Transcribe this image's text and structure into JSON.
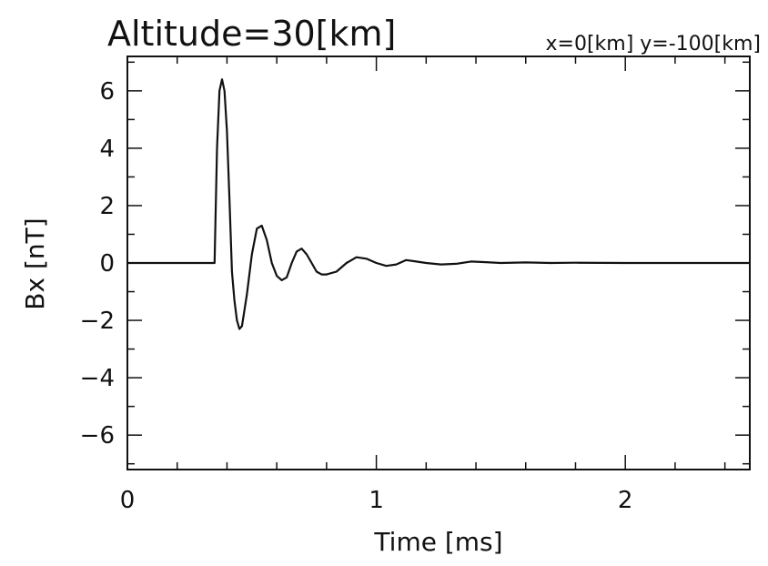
{
  "chart_data": {
    "type": "line",
    "title": "Altitude=30[km]",
    "subtitle": "x=0[km] y=-100[km]",
    "xlabel": "Time [ms]",
    "ylabel": "Bx [nT]",
    "xlim": [
      0,
      2.5
    ],
    "ylim": [
      -7.2,
      7.2
    ],
    "x_ticks": [
      0,
      1,
      2
    ],
    "y_ticks": [
      -6,
      -4,
      -2,
      0,
      2,
      4,
      6
    ],
    "x_tick_labels": [
      "0",
      "1",
      "2"
    ],
    "y_tick_labels": [
      "−6",
      "−4",
      "−2",
      "0",
      "2",
      "4",
      "6"
    ],
    "grid": false,
    "series": [
      {
        "x": [
          0.0,
          0.2,
          0.35,
          0.353,
          0.36,
          0.37,
          0.38,
          0.39,
          0.4,
          0.41,
          0.42,
          0.43,
          0.44,
          0.45,
          0.46,
          0.48,
          0.5,
          0.52,
          0.54,
          0.56,
          0.58,
          0.6,
          0.62,
          0.64,
          0.66,
          0.68,
          0.7,
          0.72,
          0.74,
          0.76,
          0.78,
          0.8,
          0.84,
          0.88,
          0.92,
          0.96,
          1.0,
          1.04,
          1.08,
          1.12,
          1.16,
          1.2,
          1.26,
          1.32,
          1.38,
          1.44,
          1.5,
          1.6,
          1.7,
          1.8,
          2.0,
          2.2,
          2.5
        ],
        "y": [
          0.0,
          0.0,
          0.0,
          1.2,
          4.0,
          6.0,
          6.4,
          6.0,
          4.6,
          2.2,
          -0.3,
          -1.3,
          -2.0,
          -2.3,
          -2.2,
          -1.1,
          0.3,
          1.2,
          1.3,
          0.8,
          0.0,
          -0.45,
          -0.6,
          -0.5,
          0.0,
          0.4,
          0.5,
          0.3,
          0.0,
          -0.3,
          -0.4,
          -0.4,
          -0.3,
          0.0,
          0.2,
          0.15,
          0.0,
          -0.1,
          -0.05,
          0.1,
          0.05,
          0.0,
          -0.05,
          -0.03,
          0.05,
          0.03,
          0.0,
          0.02,
          0.0,
          0.01,
          0.0,
          0.0,
          0.0
        ]
      }
    ]
  }
}
